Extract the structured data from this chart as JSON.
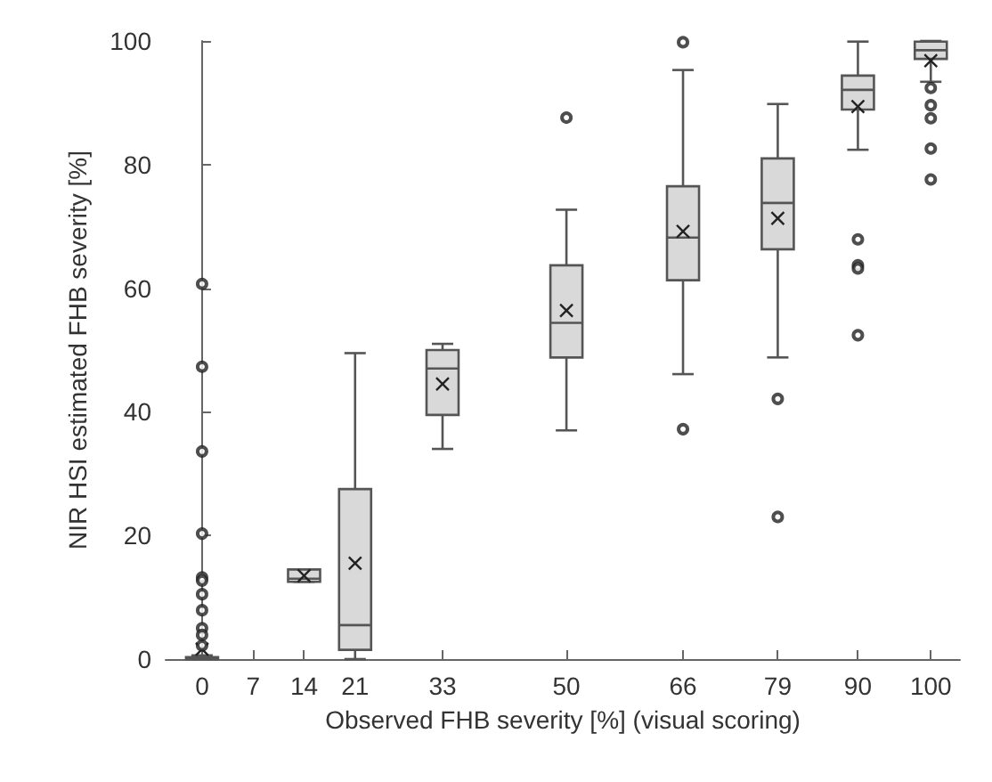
{
  "chart_data": {
    "type": "box",
    "xlabel": "Observed FHB severity [%] (visual scoring)",
    "ylabel": "NIR HSI estimated FHB severity [%]",
    "x": [
      0,
      14,
      21,
      33,
      50,
      66,
      79,
      90,
      100
    ],
    "color": "#d9d9d9",
    "boxes": [
      {
        "low": 0,
        "q1": 0,
        "median": 0,
        "q3": 0.3,
        "high": 0.6,
        "mean": 1.6,
        "outliers": [
          60.7,
          47.3,
          33.6,
          20.3,
          13.2,
          12.7,
          10.5,
          7.9,
          5,
          3.9,
          2.2
        ]
      },
      {
        "low": 12.5,
        "q1": 12.5,
        "median": 13,
        "q3": 14.5,
        "high": 14.5,
        "mean": 13.5
      },
      {
        "low": 0,
        "q1": 1.5,
        "median": 5.5,
        "q3": 27.5,
        "high": 49.5,
        "mean": 15.5
      },
      {
        "low": 34,
        "q1": 39.5,
        "median": 47,
        "q3": 50,
        "high": 51,
        "mean": 44.5
      },
      {
        "low": 37,
        "q1": 48.8,
        "median": 54.4,
        "q3": 63.7,
        "high": 72.7,
        "mean": 56.4,
        "outliers": [
          87.6
        ]
      },
      {
        "low": 46.1,
        "q1": 61.3,
        "median": 68.2,
        "q3": 76.5,
        "high": 95.3,
        "mean": 69.2,
        "outliers": [
          99.8,
          37.2
        ]
      },
      {
        "low": 48.8,
        "q1": 66.3,
        "median": 73.8,
        "q3": 81,
        "high": 89.8,
        "mean": 71.3,
        "outliers": [
          42.1,
          23
        ]
      },
      {
        "low": 82.4,
        "q1": 88.9,
        "median": 92.1,
        "q3": 94.4,
        "high": 99.9,
        "mean": 89.4,
        "outliers": [
          67.9,
          63.7,
          63.2,
          52.4
        ]
      },
      {
        "low": 93.4,
        "q1": 97.1,
        "median": 98.5,
        "q3": 99.9,
        "high": 100,
        "mean": 96.8,
        "outliers": [
          92.4,
          89.6,
          87.5,
          82.6,
          77.6
        ]
      }
    ],
    "xlim": [
      -5,
      104
    ],
    "xticks": [
      0,
      7,
      14,
      21,
      33,
      50,
      66,
      79,
      90,
      100
    ],
    "ylim": [
      0,
      100
    ],
    "yticks": [
      0,
      20,
      40,
      60,
      80,
      100
    ]
  }
}
